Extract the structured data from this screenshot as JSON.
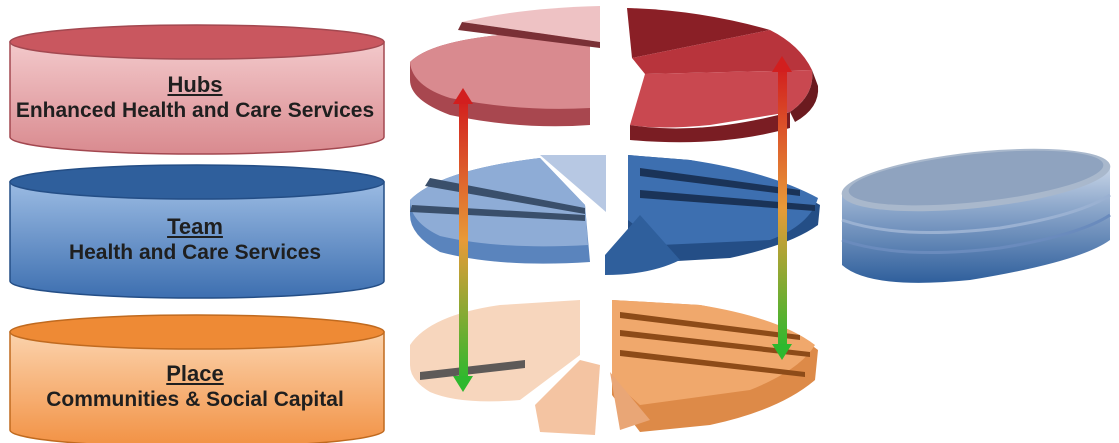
{
  "layers": [
    {
      "id": "hubs",
      "title": "Hubs",
      "subtitle": "Enhanced Health and Care Services",
      "color_top": "#d98a8f",
      "color_side": "#e6a9ac",
      "color_dark": "#9c2f36"
    },
    {
      "id": "team",
      "title": "Team",
      "subtitle": "Health and Care Services",
      "color_top": "#3d6fb0",
      "color_side": "#5a8cc8",
      "color_dark": "#1e3f72"
    },
    {
      "id": "place",
      "title": "Place",
      "subtitle": "Communities & Social Capital",
      "color_top": "#f2a15a",
      "color_side": "#f8bd86",
      "color_dark": "#b05a16"
    }
  ],
  "arrows": [
    {
      "id": "left-arrow",
      "direction": "both",
      "color_top": "#d21e1e",
      "color_bottom": "#2eb82e"
    },
    {
      "id": "right-arrow",
      "direction": "both",
      "color_top": "#d21e1e",
      "color_bottom": "#2eb82e"
    }
  ]
}
